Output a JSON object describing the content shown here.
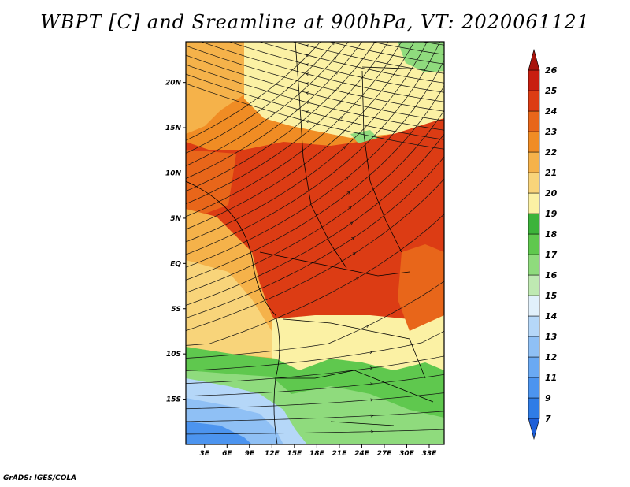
{
  "title": "WBPT [C] and Sreamline at 900hPa, VT: 2020061121",
  "credit": "GrADS: IGES/COLA",
  "map": {
    "lat_ticks": [
      "20N",
      "15N",
      "10N",
      "5N",
      "EQ",
      "5S",
      "10S",
      "15S"
    ],
    "lat_values": [
      20,
      15,
      10,
      5,
      0,
      -5,
      -10,
      -15
    ],
    "lon_ticks": [
      "3E",
      "6E",
      "9E",
      "12E",
      "15E",
      "18E",
      "21E",
      "24E",
      "27E",
      "30E",
      "33E"
    ],
    "lon_values": [
      3,
      6,
      9,
      12,
      15,
      18,
      21,
      24,
      27,
      30,
      33
    ],
    "lat_range": [
      -20,
      24.5
    ],
    "lon_range": [
      0.5,
      35
    ]
  },
  "colorbar": {
    "labels": [
      "7",
      "9",
      "11",
      "12",
      "13",
      "14",
      "15",
      "16",
      "17",
      "18",
      "19",
      "20",
      "21",
      "22",
      "23",
      "24",
      "25",
      "26"
    ],
    "colors": [
      "#1e5fd8",
      "#2f7ce6",
      "#4c94ef",
      "#6aa9f3",
      "#8fc0f5",
      "#b5d7f8",
      "#e1f0fb",
      "#bfe9b2",
      "#8fdb7d",
      "#5fc84e",
      "#3cb33a",
      "#fbf1a4",
      "#f8d47a",
      "#f5b24a",
      "#f08c24",
      "#e8661a",
      "#dc3c14",
      "#c81e10",
      "#a8140c"
    ]
  }
}
